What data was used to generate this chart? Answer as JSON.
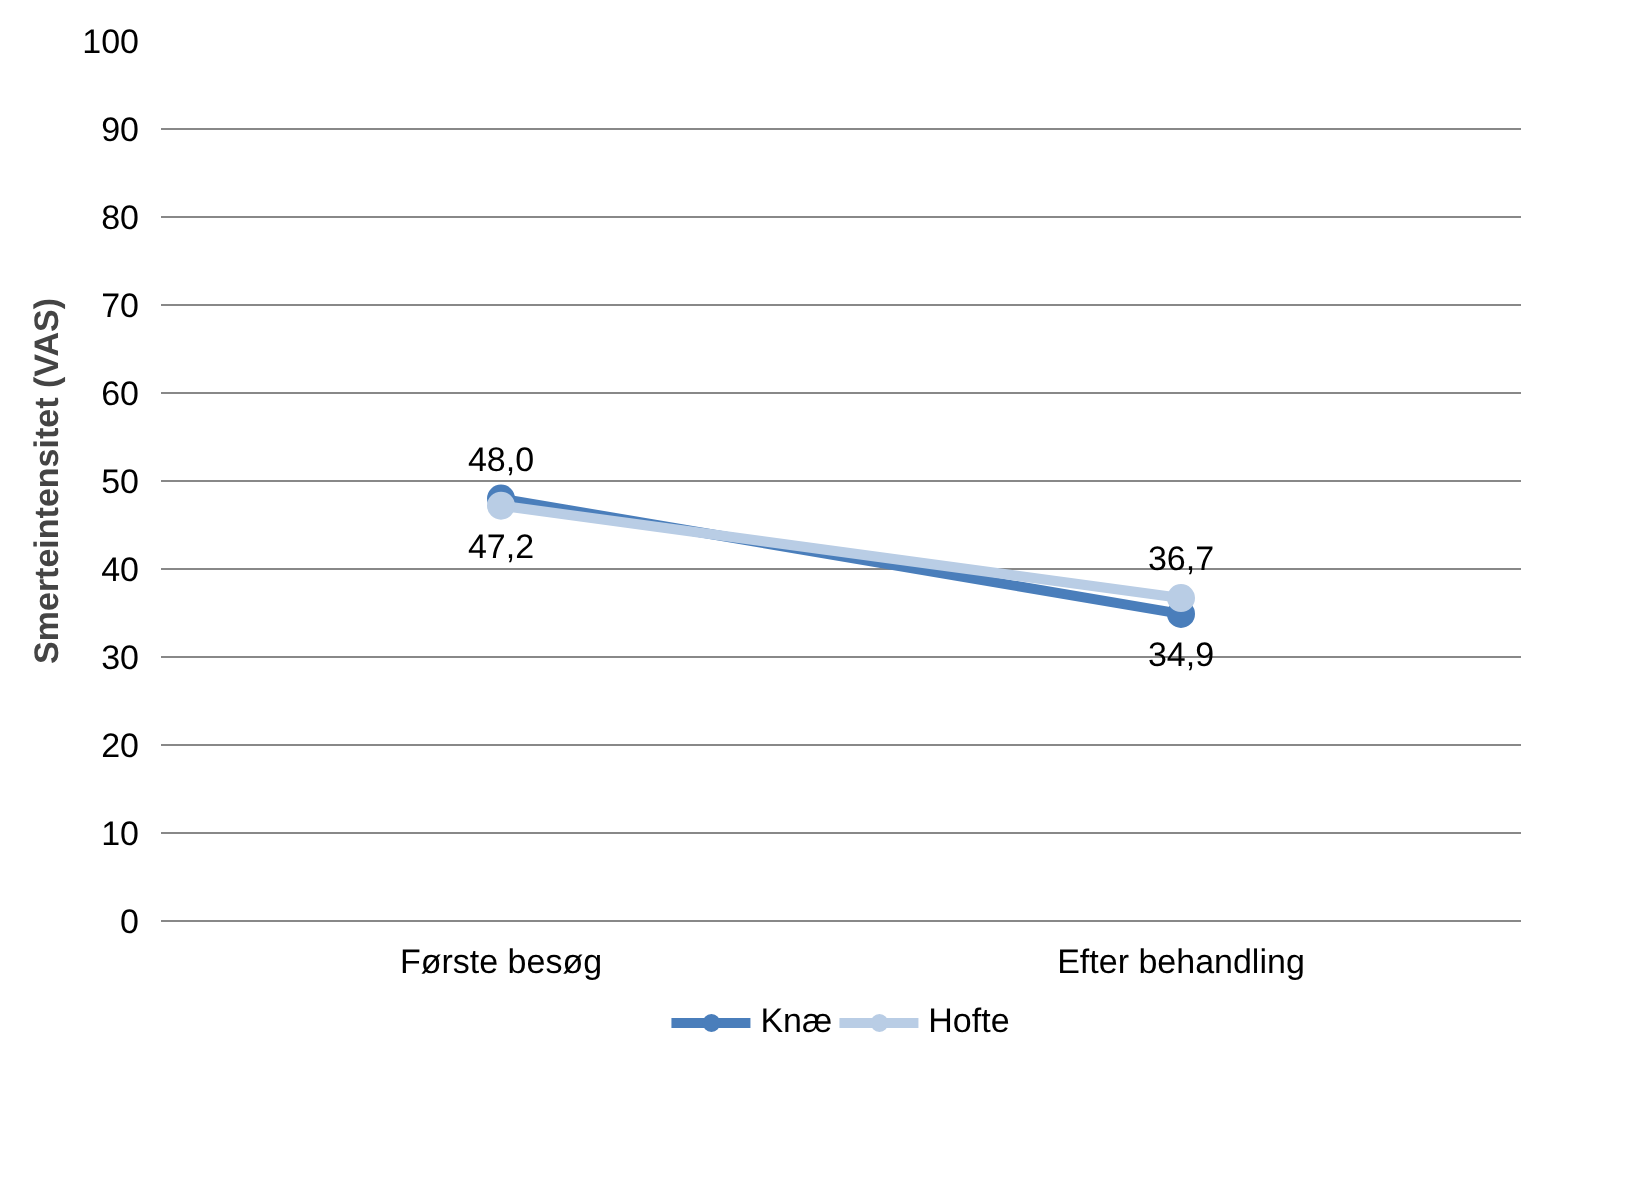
{
  "chart_data": {
    "type": "line",
    "ylabel": "Smerteintensitet (VAS)",
    "categories": [
      "Første besøg",
      "Efter behandling"
    ],
    "series": [
      {
        "name": "Knæ",
        "color": "#4a7ebb",
        "values": [
          48.0,
          34.9
        ],
        "value_labels": [
          "48,0",
          "34,9"
        ]
      },
      {
        "name": "Hofte",
        "color": "#b9cde5",
        "values": [
          47.2,
          36.7
        ],
        "value_labels": [
          "47,2",
          "36,7"
        ]
      }
    ],
    "ylim": [
      0,
      100
    ],
    "yticks": [
      0,
      10,
      20,
      30,
      40,
      50,
      60,
      70,
      80,
      90,
      100
    ],
    "grid": "y",
    "legend": "bottom",
    "marker": "circle",
    "line_style": "solid"
  }
}
